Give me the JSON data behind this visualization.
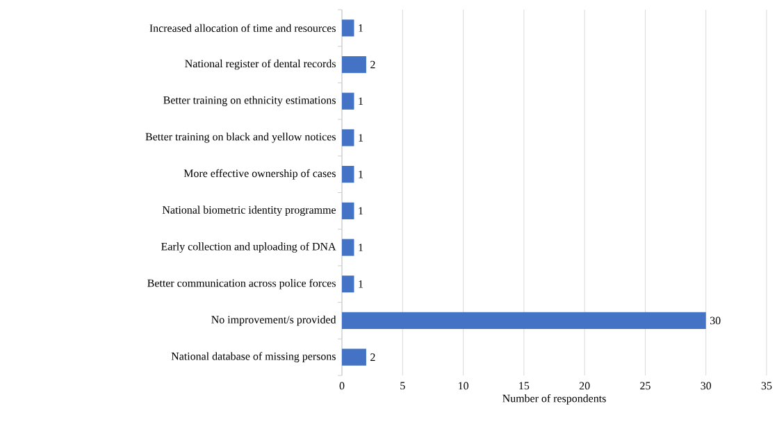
{
  "chart_data": {
    "type": "bar",
    "orientation": "horizontal",
    "xlabel": "Number of respondents",
    "categories": [
      "Increased allocation of time and resources",
      "National register of dental records",
      "Better training on ethnicity estimations",
      "Better training on black and yellow notices",
      "More effective ownership of cases",
      "National biometric identity programme",
      "Early collection and uploading of DNA",
      "Better communication across police forces",
      "No improvement/s provided",
      "National database of missing persons"
    ],
    "values": [
      1,
      2,
      1,
      1,
      1,
      1,
      1,
      1,
      30,
      2
    ],
    "color": "#4472c4",
    "xlim": [
      0,
      35
    ],
    "xticks": [
      0,
      5,
      10,
      15,
      20,
      25,
      30,
      35
    ],
    "grid": "x",
    "data_labels": true
  }
}
